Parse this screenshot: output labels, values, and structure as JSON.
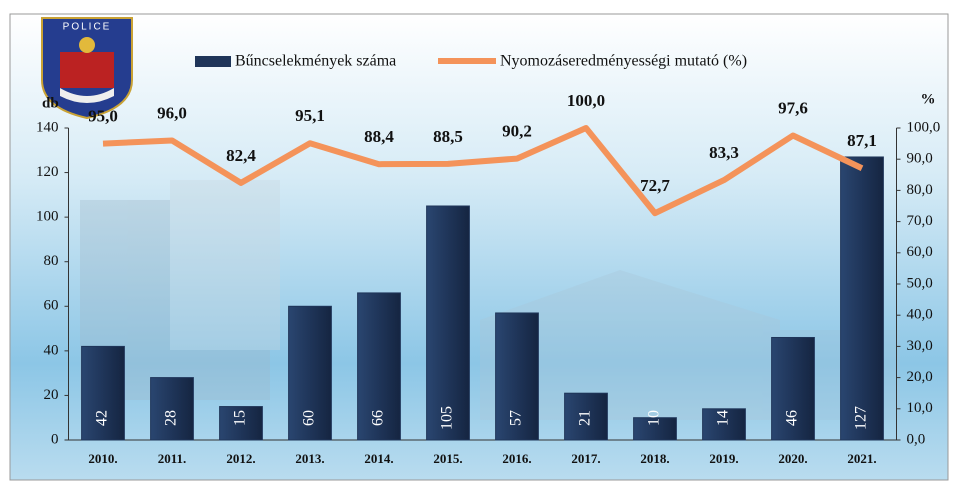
{
  "chart_data": {
    "type": "combo",
    "badge_text": "POLICE",
    "y_label": "db",
    "y2_label": "%",
    "categories": [
      "2010.",
      "2011.",
      "2012.",
      "2013.",
      "2014.",
      "2015.",
      "2016.",
      "2017.",
      "2018.",
      "2019.",
      "2020.",
      "2021."
    ],
    "series": [
      {
        "name": "Bűncselekmények száma",
        "type": "bar",
        "color": "#1f3559",
        "values": [
          42,
          28,
          15,
          60,
          66,
          105,
          57,
          21,
          10,
          14,
          46,
          127
        ]
      },
      {
        "name": "Nyomozáseredményességi mutató (%)",
        "type": "line",
        "axis": "y2",
        "color": "#f4935a",
        "values": [
          95.0,
          96.0,
          82.4,
          95.1,
          88.4,
          88.5,
          90.2,
          100.0,
          72.7,
          83.3,
          97.6,
          87.1
        ],
        "value_labels": [
          "95,0",
          "96,0",
          "82,4",
          "95,1",
          "88,4",
          "88,5",
          "90,2",
          "100,0",
          "72,7",
          "83,3",
          "97,6",
          "87,1"
        ]
      }
    ],
    "ylim": [
      0,
      140
    ],
    "yticks": [
      0,
      20,
      40,
      60,
      80,
      100,
      120,
      140
    ],
    "y2lim": [
      0,
      100
    ],
    "y2ticks": [
      {
        "value": 0,
        "label": "0,0"
      },
      {
        "value": 10,
        "label": "10,0"
      },
      {
        "value": 20,
        "label": "20,0"
      },
      {
        "value": 30,
        "label": "30,0"
      },
      {
        "value": 40,
        "label": "40,0"
      },
      {
        "value": 50,
        "label": "50,0"
      },
      {
        "value": 60,
        "label": "60,0"
      },
      {
        "value": 70,
        "label": "70,0"
      },
      {
        "value": 80,
        "label": "80,0"
      },
      {
        "value": 90,
        "label": "90,0"
      },
      {
        "value": 100,
        "label": "100,0"
      }
    ],
    "legend": "top"
  }
}
